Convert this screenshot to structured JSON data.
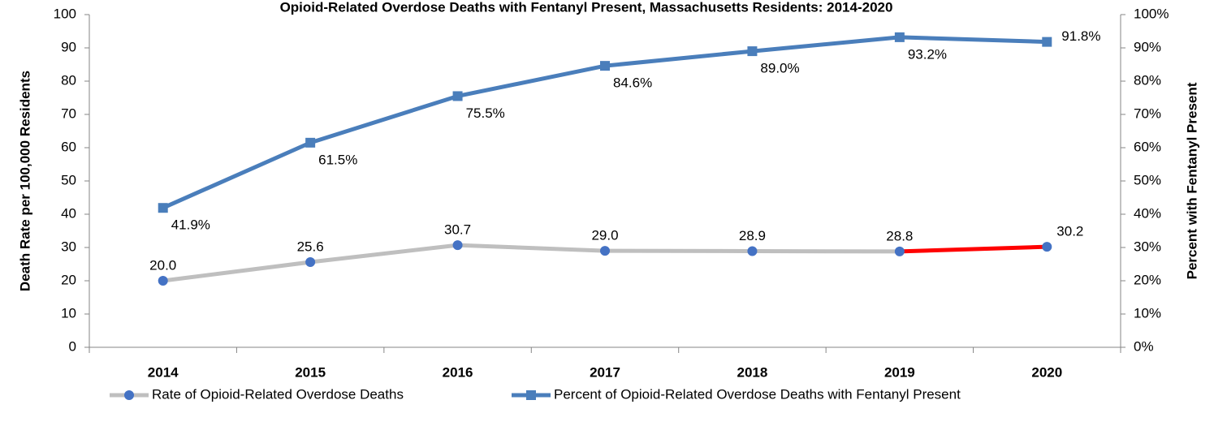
{
  "chart_data": {
    "type": "line",
    "title": "Opioid-Related Overdose Deaths with Fentanyl Present, Massachusetts Residents: 2014-2020",
    "y_label": "Death Rate per 100,000 Residents",
    "y2_label": "Percent with Fentanyl Present",
    "categories": [
      "2014",
      "2015",
      "2016",
      "2017",
      "2018",
      "2019",
      "2020"
    ],
    "series": [
      {
        "name": "Rate of Opioid-Related Overdose Deaths",
        "color": "#bfbfbf",
        "marker_color": "#4472c4",
        "marker": "circle",
        "last_segment_color": "#ff0000",
        "values": [
          20.0,
          25.6,
          30.7,
          29.0,
          28.9,
          28.8,
          30.2
        ],
        "value_labels": [
          "20.0",
          "25.6",
          "30.7",
          "29.0",
          "28.9",
          "28.8",
          "30.2"
        ]
      },
      {
        "name": "Percent of Opioid-Related Overdose Deaths with Fentanyl Present",
        "color": "#4a7ebb",
        "marker_color": "#4a7ebb",
        "marker": "square",
        "axis": "y2",
        "values": [
          41.9,
          61.5,
          75.5,
          84.6,
          89.0,
          93.2,
          91.8
        ],
        "value_labels": [
          "41.9%",
          "61.5%",
          "75.5%",
          "84.6%",
          "89.0%",
          "93.2%",
          "91.8%"
        ]
      }
    ],
    "ylim": [
      0,
      100
    ],
    "yticks": [
      0,
      10,
      20,
      30,
      40,
      50,
      60,
      70,
      80,
      90,
      100
    ],
    "y2lim": [
      0,
      100
    ],
    "y2ticks": [
      {
        "value": 0,
        "label": "0%"
      },
      {
        "value": 10,
        "label": "10%"
      },
      {
        "value": 20,
        "label": "20%"
      },
      {
        "value": 30,
        "label": "30%"
      },
      {
        "value": 40,
        "label": "40%"
      },
      {
        "value": 50,
        "label": "50%"
      },
      {
        "value": 60,
        "label": "60%"
      },
      {
        "value": 70,
        "label": "70%"
      },
      {
        "value": 80,
        "label": "80%"
      },
      {
        "value": 90,
        "label": "90%"
      },
      {
        "value": 100,
        "label": "100%"
      }
    ],
    "legend": "bottom",
    "grid": false
  }
}
